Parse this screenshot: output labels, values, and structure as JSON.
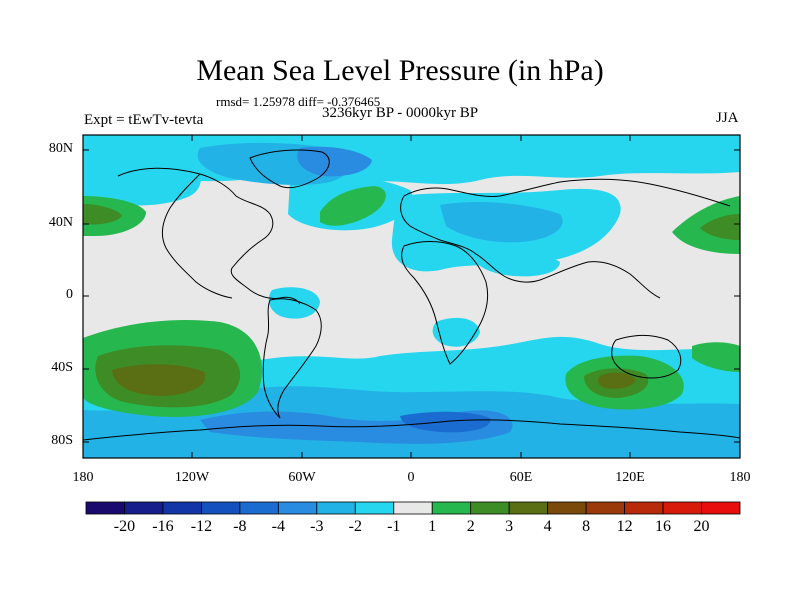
{
  "title": "Mean Sea Level Pressure (in hPa)",
  "stats_line": "rmsd= 1.25978 diff= -0.376465",
  "period": "3236kyr BP - 0000kyr BP",
  "experiment": "Expt = tEwTv-tevta",
  "season": "JJA",
  "lat_labels": [
    "80N",
    "40N",
    "0",
    "40S",
    "80S"
  ],
  "lon_labels": [
    "180",
    "120W",
    "60W",
    "0",
    "60E",
    "120E",
    "180"
  ],
  "colorbar": {
    "labels": [
      "-20",
      "-16",
      "-12",
      "-8",
      "-4",
      "-3",
      "-2",
      "-1",
      "1",
      "2",
      "3",
      "4",
      "8",
      "12",
      "16",
      "20"
    ],
    "colors": [
      "#1a0a6e",
      "#161e8c",
      "#1236a8",
      "#1450be",
      "#1a6cd0",
      "#2a8ce0",
      "#22b2e6",
      "#26d6ee",
      "#e8e8e8",
      "#26b84e",
      "#3e8c26",
      "#5a6e14",
      "#7a4a0a",
      "#9a3a0a",
      "#b82a0a",
      "#d81a0a",
      "#e80e0e"
    ]
  },
  "field_colors": {
    "neutral": "#e8e8e8",
    "neg1": "#26d6ee",
    "neg2": "#22b2e6",
    "neg3": "#2a8ce0",
    "neg4": "#1a6cd0",
    "neg8": "#1450be",
    "pos1": "#26b84e",
    "pos2": "#3e8c26",
    "pos3": "#5a6e14"
  }
}
